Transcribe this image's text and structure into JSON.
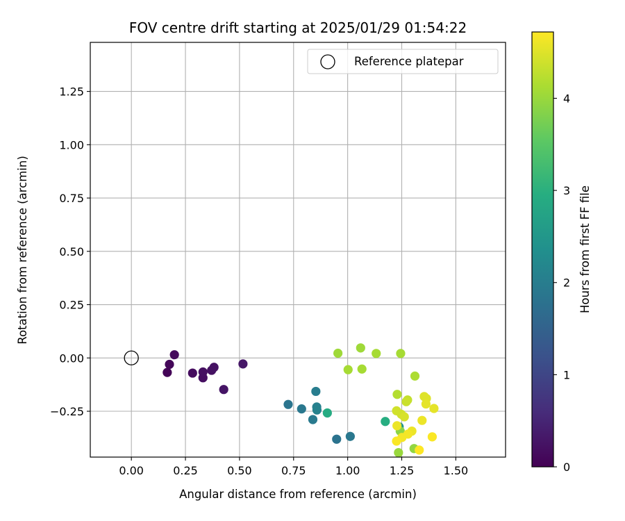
{
  "chart_data": {
    "type": "scatter",
    "title": "FOV centre drift starting at 2025/01/29 01:54:22",
    "xlabel": "Angular distance from reference (arcmin)",
    "ylabel": "Rotation from reference (arcmin)",
    "xlim": [
      -0.19,
      1.73
    ],
    "ylim": [
      -0.465,
      1.48
    ],
    "xticks": [
      0.0,
      0.25,
      0.5,
      0.75,
      1.0,
      1.25,
      1.5
    ],
    "xtick_labels": [
      "0.00",
      "0.25",
      "0.50",
      "0.75",
      "1.00",
      "1.25",
      "1.50"
    ],
    "yticks": [
      -0.25,
      0.0,
      0.25,
      0.5,
      0.75,
      1.0,
      1.25
    ],
    "ytick_labels": [
      "−0.25",
      "0.00",
      "0.25",
      "0.50",
      "0.75",
      "1.00",
      "1.25"
    ],
    "grid": true,
    "legend": {
      "placement": "top-right",
      "entries": [
        {
          "label": "Reference platepar",
          "marker": "open-circle"
        }
      ]
    },
    "reference_point": {
      "x": 0.0,
      "y": 0.0,
      "label": "Reference platepar"
    },
    "colorbar": {
      "label": "Hours from first FF file",
      "min": 0,
      "max": 4.72,
      "ticks": [
        0,
        1,
        2,
        3,
        4
      ],
      "tick_labels": [
        "0",
        "1",
        "2",
        "3",
        "4"
      ],
      "colormap": "viridis"
    },
    "points": [
      {
        "x": 0.166,
        "y": -0.068,
        "hours": 0.05
      },
      {
        "x": 0.176,
        "y": -0.03,
        "hours": 0.08
      },
      {
        "x": 0.199,
        "y": 0.015,
        "hours": 0.12
      },
      {
        "x": 0.283,
        "y": -0.071,
        "hours": 0.15
      },
      {
        "x": 0.331,
        "y": -0.093,
        "hours": 0.18
      },
      {
        "x": 0.331,
        "y": -0.066,
        "hours": 0.2
      },
      {
        "x": 0.371,
        "y": -0.058,
        "hours": 0.22
      },
      {
        "x": 0.382,
        "y": -0.044,
        "hours": 0.24
      },
      {
        "x": 0.427,
        "y": -0.148,
        "hours": 0.26
      },
      {
        "x": 0.516,
        "y": -0.028,
        "hours": 0.3
      },
      {
        "x": 0.725,
        "y": -0.218,
        "hours": 1.85
      },
      {
        "x": 0.787,
        "y": -0.239,
        "hours": 1.9
      },
      {
        "x": 0.839,
        "y": -0.289,
        "hours": 1.95
      },
      {
        "x": 0.853,
        "y": -0.157,
        "hours": 2.0
      },
      {
        "x": 0.857,
        "y": -0.23,
        "hours": 2.05
      },
      {
        "x": 0.858,
        "y": -0.244,
        "hours": 2.1
      },
      {
        "x": 0.949,
        "y": -0.381,
        "hours": 1.8
      },
      {
        "x": 1.012,
        "y": -0.368,
        "hours": 1.9
      },
      {
        "x": 0.906,
        "y": -0.258,
        "hours": 2.9
      },
      {
        "x": 1.174,
        "y": -0.298,
        "hours": 2.95
      },
      {
        "x": 1.238,
        "y": -0.323,
        "hours": 2.4
      },
      {
        "x": 0.955,
        "y": 0.022,
        "hours": 4.05
      },
      {
        "x": 1.06,
        "y": 0.047,
        "hours": 4.05
      },
      {
        "x": 1.002,
        "y": -0.055,
        "hours": 4.1
      },
      {
        "x": 1.066,
        "y": -0.052,
        "hours": 4.1
      },
      {
        "x": 1.132,
        "y": 0.021,
        "hours": 4.1
      },
      {
        "x": 1.245,
        "y": 0.021,
        "hours": 4.1
      },
      {
        "x": 1.311,
        "y": -0.085,
        "hours": 4.15
      },
      {
        "x": 1.229,
        "y": -0.171,
        "hours": 4.2
      },
      {
        "x": 1.243,
        "y": -0.343,
        "hours": 3.9
      },
      {
        "x": 1.235,
        "y": -0.444,
        "hours": 4.0
      },
      {
        "x": 1.307,
        "y": -0.425,
        "hours": 3.95
      },
      {
        "x": 1.277,
        "y": -0.197,
        "hours": 4.3
      },
      {
        "x": 1.271,
        "y": -0.205,
        "hours": 4.35
      },
      {
        "x": 1.226,
        "y": -0.248,
        "hours": 4.4
      },
      {
        "x": 1.248,
        "y": -0.264,
        "hours": 4.4
      },
      {
        "x": 1.262,
        "y": -0.276,
        "hours": 4.45
      },
      {
        "x": 1.354,
        "y": -0.181,
        "hours": 4.5
      },
      {
        "x": 1.364,
        "y": -0.19,
        "hours": 4.5
      },
      {
        "x": 1.362,
        "y": -0.216,
        "hours": 4.55
      },
      {
        "x": 1.399,
        "y": -0.237,
        "hours": 4.55
      },
      {
        "x": 1.344,
        "y": -0.293,
        "hours": 4.6
      },
      {
        "x": 1.228,
        "y": -0.318,
        "hours": 4.6
      },
      {
        "x": 1.297,
        "y": -0.343,
        "hours": 4.6
      },
      {
        "x": 1.279,
        "y": -0.357,
        "hours": 4.65
      },
      {
        "x": 1.251,
        "y": -0.373,
        "hours": 4.65
      },
      {
        "x": 1.226,
        "y": -0.39,
        "hours": 4.7
      },
      {
        "x": 1.391,
        "y": -0.37,
        "hours": 4.7
      },
      {
        "x": 1.331,
        "y": -0.432,
        "hours": 4.72
      }
    ]
  }
}
